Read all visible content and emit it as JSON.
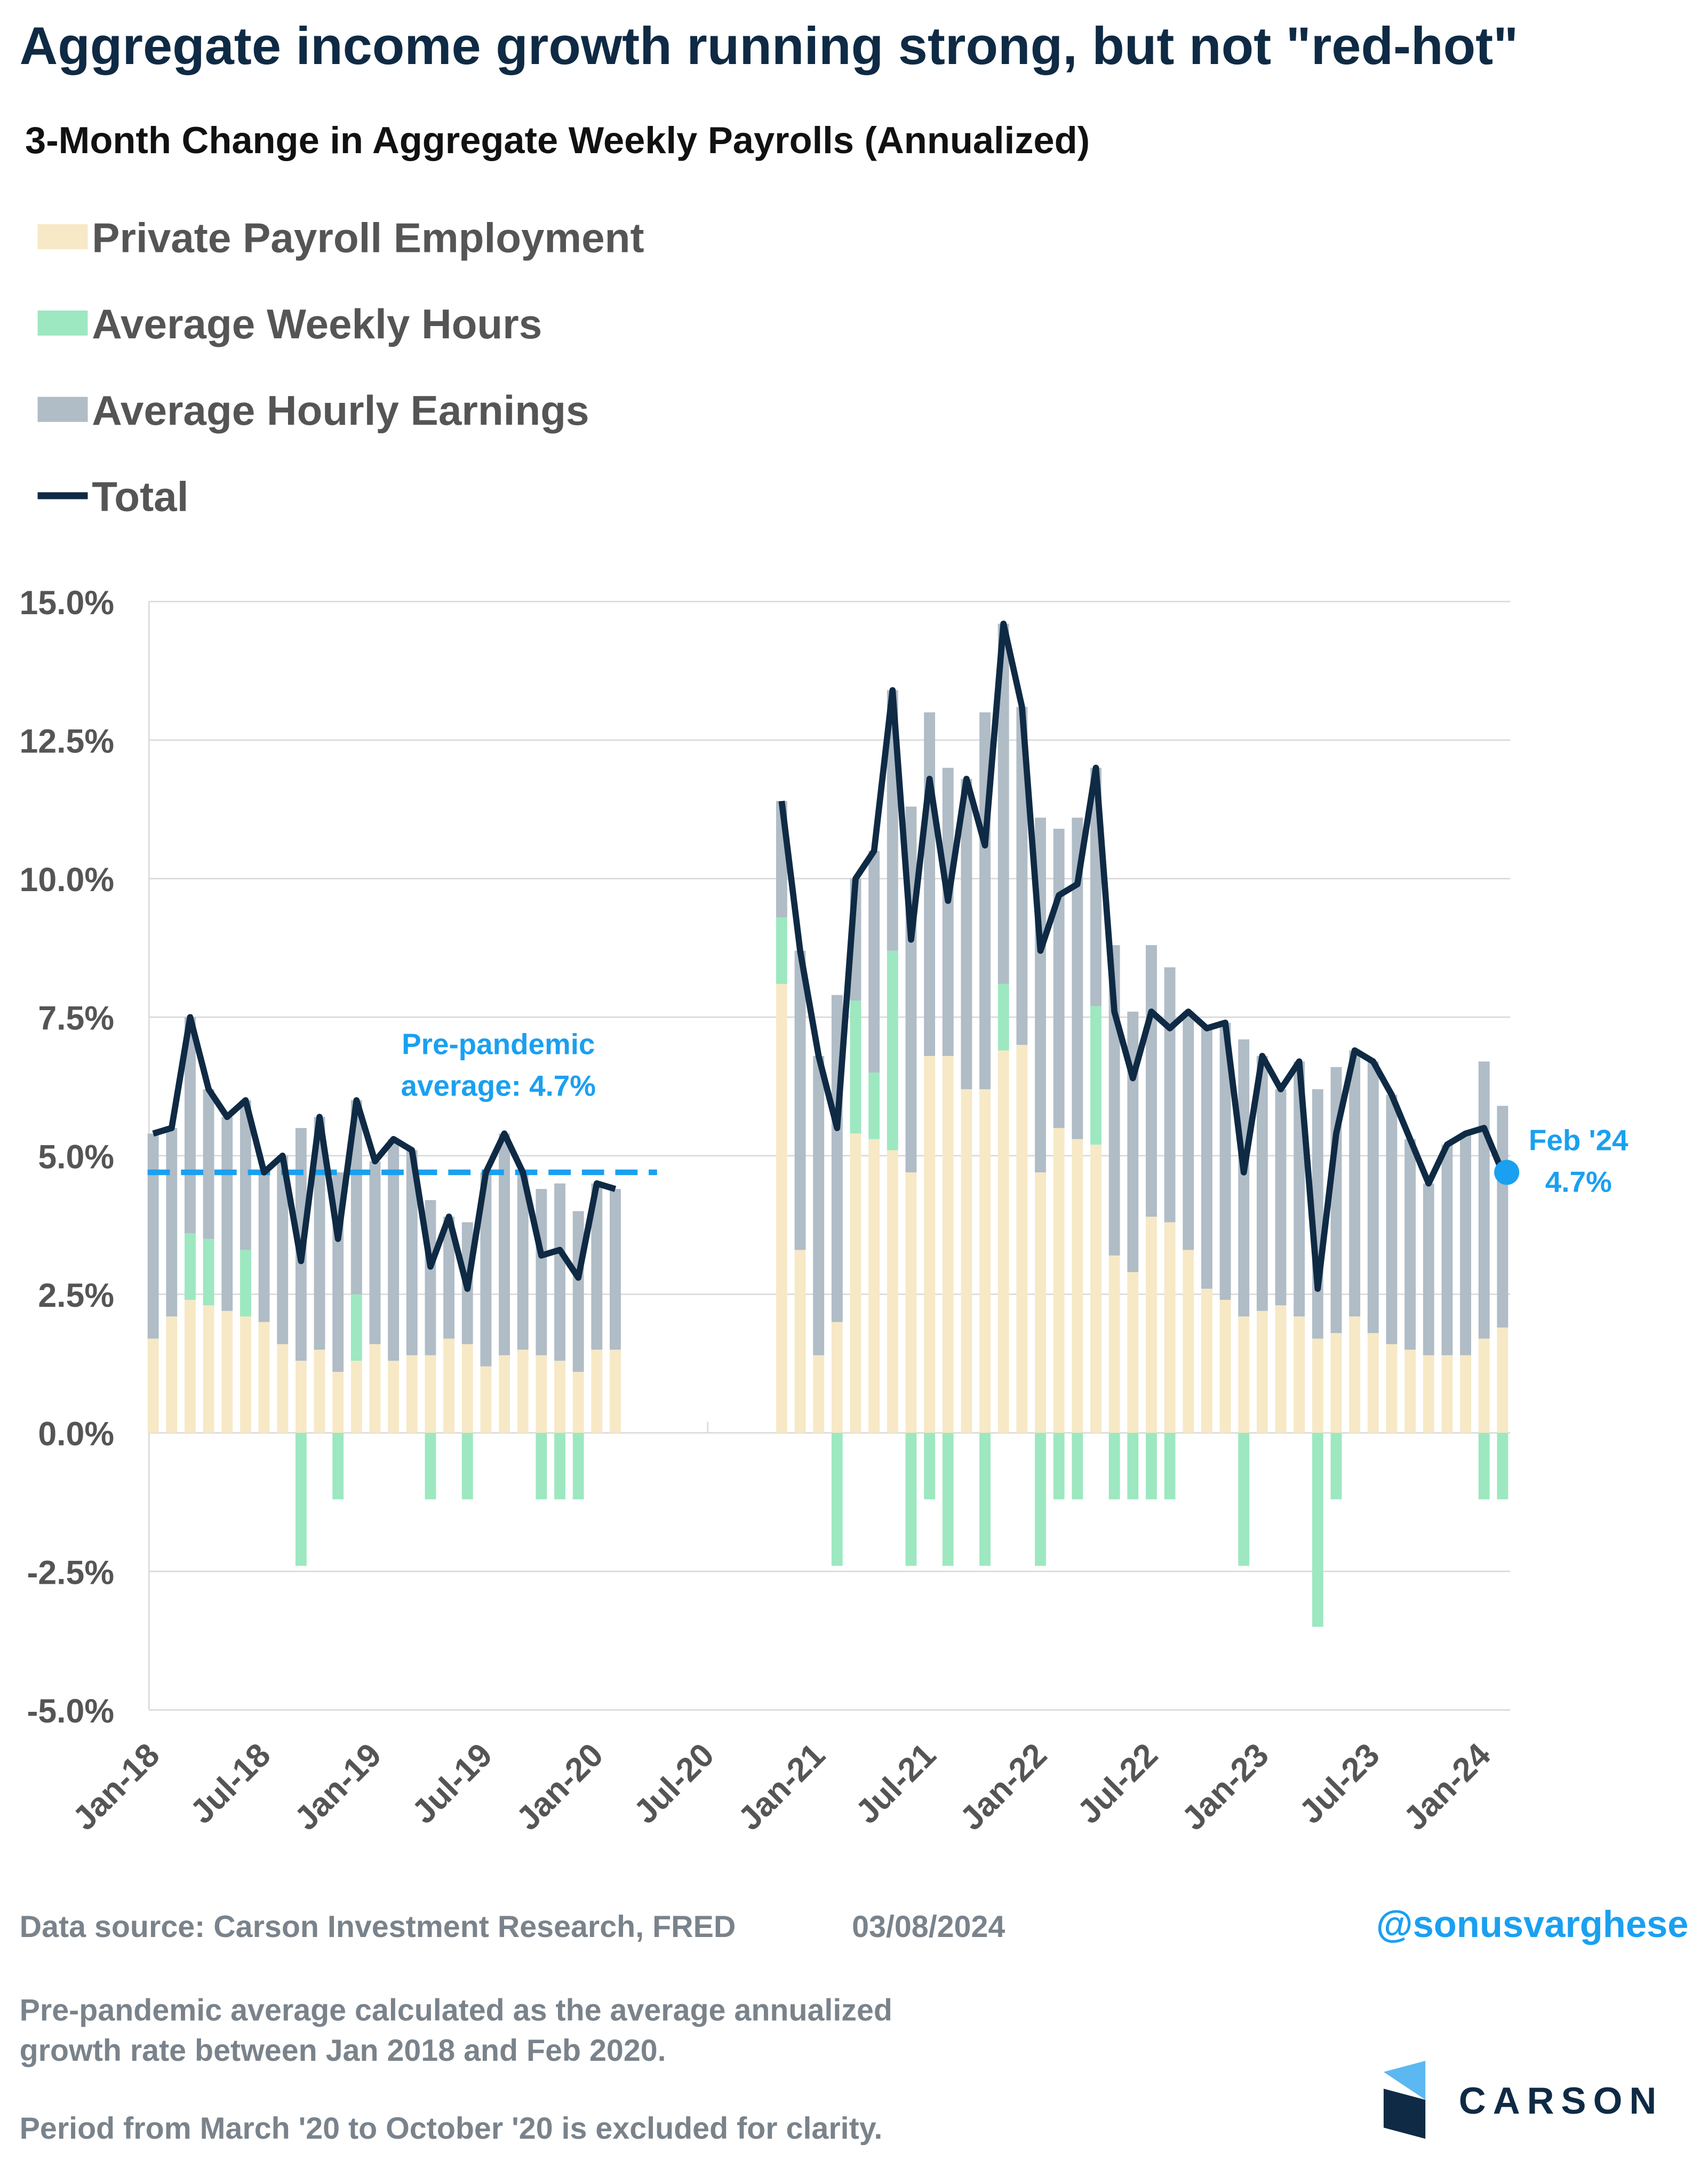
{
  "chart_data": {
    "type": "stacked_bar_line",
    "title": "Aggregate income growth running strong, but not \"red-hot\"",
    "subtitle": "3-Month Change in Aggregate Weekly Payrolls (Annualized)",
    "categories": [
      "Jan-18",
      null,
      null,
      null,
      null,
      null,
      "Jul-18",
      null,
      null,
      null,
      null,
      null,
      "Jan-19",
      null,
      null,
      null,
      null,
      null,
      "Jul-19",
      null,
      null,
      null,
      null,
      null,
      "Jan-20",
      null,
      null,
      null,
      null,
      null,
      "Jul-20",
      null,
      null,
      null,
      null,
      null,
      "Jan-21",
      null,
      null,
      null,
      null,
      null,
      "Jul-21",
      null,
      null,
      null,
      null,
      null,
      "Jan-22",
      null,
      null,
      null,
      null,
      null,
      "Jul-22",
      null,
      null,
      null,
      null,
      null,
      "Jan-23",
      null,
      null,
      null,
      null,
      null,
      "Jul-23",
      null,
      null,
      null,
      null,
      null,
      "Jan-24",
      null
    ],
    "series": [
      {
        "name": "Private Payroll Employment",
        "color": "#f7e9c6",
        "kind": "bar",
        "values": [
          1.7,
          2.1,
          2.4,
          2.3,
          2.2,
          2.1,
          2.0,
          1.6,
          1.3,
          1.5,
          1.1,
          1.3,
          1.6,
          1.3,
          1.4,
          1.4,
          1.7,
          1.6,
          1.2,
          1.4,
          1.5,
          1.4,
          1.3,
          1.1,
          1.5,
          1.5,
          null,
          null,
          null,
          null,
          null,
          null,
          null,
          null,
          8.1,
          3.3,
          1.4,
          2.0,
          5.4,
          5.3,
          5.1,
          4.7,
          6.8,
          6.8,
          6.2,
          6.2,
          6.9,
          7.0,
          4.7,
          5.5,
          5.3,
          5.2,
          3.2,
          2.9,
          3.9,
          3.8,
          3.3,
          2.6,
          2.4,
          2.1,
          2.2,
          2.3,
          2.1,
          1.7,
          1.8,
          2.1,
          1.8,
          1.6,
          1.5,
          1.4,
          1.4,
          1.4,
          1.7,
          1.9
        ]
      },
      {
        "name": "Average Weekly Hours",
        "color": "#9de8c0",
        "kind": "bar",
        "values": [
          0,
          0,
          1.2,
          1.2,
          0,
          1.2,
          0,
          0,
          -2.4,
          0,
          -1.2,
          1.2,
          0,
          0,
          0,
          -1.2,
          0,
          -1.2,
          0,
          0,
          0,
          -1.2,
          -1.2,
          -1.2,
          0,
          0,
          null,
          null,
          null,
          null,
          null,
          null,
          null,
          null,
          1.2,
          0,
          0,
          -2.4,
          2.4,
          1.2,
          3.6,
          -2.4,
          -1.2,
          -2.4,
          0,
          -2.4,
          1.2,
          0,
          -2.4,
          -1.2,
          -1.2,
          2.5,
          -1.2,
          -1.2,
          -1.2,
          -1.2,
          0,
          0,
          0,
          -2.4,
          0,
          0,
          0,
          -3.5,
          -1.2,
          0,
          0,
          0,
          0,
          0,
          0,
          0,
          -1.2,
          -1.2
        ]
      },
      {
        "name": "Average Hourly Earnings",
        "color": "#b0bcc6",
        "kind": "bar",
        "values": [
          3.7,
          3.4,
          3.9,
          2.7,
          3.5,
          2.7,
          2.7,
          3.4,
          4.2,
          4.2,
          3.6,
          3.5,
          3.3,
          4.0,
          3.7,
          2.8,
          2.2,
          2.2,
          3.5,
          4.0,
          3.2,
          3.0,
          3.2,
          2.9,
          3.0,
          2.9,
          null,
          null,
          null,
          null,
          null,
          null,
          null,
          null,
          2.1,
          5.4,
          5.4,
          5.9,
          2.2,
          4.0,
          4.7,
          6.6,
          6.2,
          5.2,
          5.6,
          6.8,
          6.5,
          6.1,
          6.4,
          5.4,
          5.8,
          4.3,
          5.6,
          4.7,
          4.9,
          4.6,
          4.3,
          4.7,
          5.0,
          5.0,
          4.6,
          3.9,
          4.6,
          4.5,
          4.8,
          4.8,
          4.9,
          4.5,
          3.8,
          3.1,
          3.8,
          4.0,
          5.0,
          4.0
        ]
      },
      {
        "name": "Total",
        "color": "#0f2a44",
        "kind": "line",
        "values": [
          5.4,
          5.5,
          7.5,
          6.2,
          5.7,
          6.0,
          4.7,
          5.0,
          3.1,
          5.7,
          3.5,
          6.0,
          4.9,
          5.3,
          5.1,
          3.0,
          3.9,
          2.6,
          4.7,
          5.4,
          4.7,
          3.2,
          3.3,
          2.8,
          4.5,
          4.4,
          null,
          null,
          null,
          null,
          null,
          null,
          null,
          null,
          11.4,
          8.7,
          6.8,
          5.5,
          10.0,
          10.5,
          13.4,
          8.9,
          11.8,
          9.6,
          11.8,
          10.6,
          14.6,
          13.1,
          8.7,
          9.7,
          9.9,
          12.0,
          7.6,
          6.4,
          7.6,
          7.3,
          7.6,
          7.3,
          7.4,
          4.7,
          6.8,
          6.2,
          6.7,
          2.6,
          5.4,
          6.9,
          6.7,
          6.1,
          5.3,
          4.5,
          5.2,
          5.4,
          5.5,
          4.7
        ]
      }
    ],
    "ylim": [
      -5,
      15
    ],
    "yticks": [
      {
        "value": -5,
        "label": "-5.0%"
      },
      {
        "value": -2.5,
        "label": "-2.5%"
      },
      {
        "value": 0,
        "label": "0.0%"
      },
      {
        "value": 2.5,
        "label": "2.5%"
      },
      {
        "value": 5,
        "label": "5.0%"
      },
      {
        "value": 7.5,
        "label": "7.5%"
      },
      {
        "value": 10,
        "label": "10.0%"
      },
      {
        "value": 12.5,
        "label": "12.5%"
      },
      {
        "value": 15,
        "label": "15.0%"
      }
    ],
    "grid": true,
    "legend": "top-left",
    "reference_line": {
      "value": 4.7,
      "color": "#1aa0f0",
      "label": [
        "Pre-pandemic",
        "average: 4.7%"
      ]
    },
    "end_label": {
      "title": "Feb '24",
      "value_label": "4.7%",
      "color": "#1aa0f0"
    },
    "source": "Data source: Carson Investment Research, FRED",
    "date": "03/08/2024",
    "handle": "@sonusvarghese",
    "notes": [
      [
        "Pre-pandemic average calculated as the average annualized",
        "growth rate between Jan 2018 and Feb 2020."
      ],
      [
        "Period from March '20 to October '20 is excluded for clarity."
      ]
    ],
    "logo": "CARSON"
  }
}
